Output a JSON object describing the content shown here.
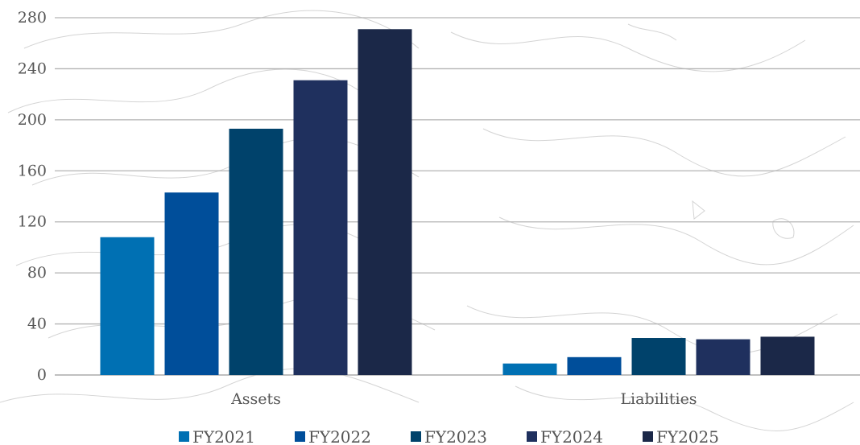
{
  "chart_data": {
    "type": "bar",
    "categories": [
      "Assets",
      "Liabilities"
    ],
    "series": [
      {
        "name": "FY2021",
        "values": [
          108,
          9
        ],
        "color": "#0070b3"
      },
      {
        "name": "FY2022",
        "values": [
          143,
          14
        ],
        "color": "#004e9a"
      },
      {
        "name": "FY2023",
        "values": [
          193,
          29
        ],
        "color": "#00426b"
      },
      {
        "name": "FY2024",
        "values": [
          231,
          28
        ],
        "color": "#1f305e"
      },
      {
        "name": "FY2025",
        "values": [
          271,
          30
        ],
        "color": "#1b2848"
      }
    ],
    "yticks": [
      0,
      40,
      80,
      120,
      160,
      200,
      240,
      280
    ],
    "ylim": [
      0,
      280
    ],
    "grid": true,
    "legend": "bottom",
    "title": "",
    "xlabel": "",
    "ylabel": ""
  }
}
